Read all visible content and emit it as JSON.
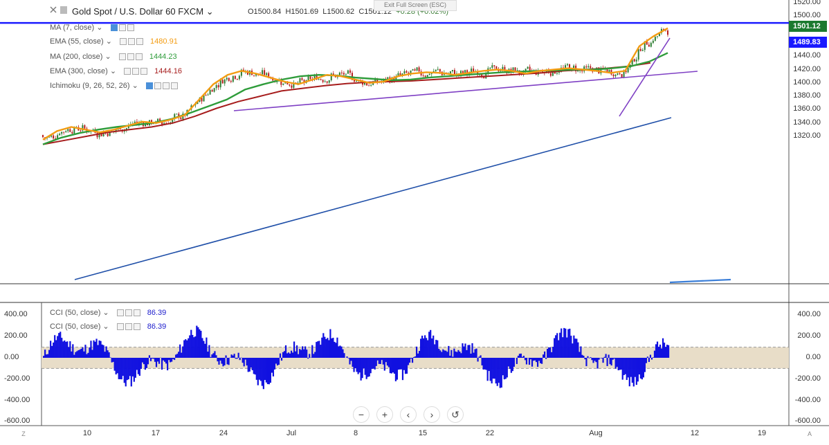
{
  "header": {
    "symbol": "Gold Spot / U.S. Dollar",
    "interval": "60",
    "source": "FXCM",
    "open": "O1500.84",
    "high": "H1501.69",
    "low": "L1500.62",
    "close": "C1501.12",
    "change": "+0.28 (+0.02%)",
    "exit_fullscreen": "Exit Full Screen (ESC)"
  },
  "indicators": [
    {
      "label": "MA (7, close)",
      "value": "",
      "color": "#5b5b5b"
    },
    {
      "label": "EMA (55, close)",
      "value": "1480.91",
      "color": "#f39c12"
    },
    {
      "label": "MA (200, close)",
      "value": "1444.23",
      "color": "#2e9c3a"
    },
    {
      "label": "EMA (300, close)",
      "value": "1444.16",
      "color": "#a61c1c"
    },
    {
      "label": "Ichimoku (9, 26, 52, 26)",
      "value": "",
      "color": "#5b5b5b"
    }
  ],
  "cci_legends": [
    {
      "label": "CCI (50, close)",
      "value": "86.39"
    },
    {
      "label": "CCI (50, close)",
      "value": "86.39"
    }
  ],
  "price_tags": {
    "current": {
      "value": "1501.12",
      "color": "#1b7a2f"
    },
    "line": {
      "value": "1489.83",
      "color": "#1a1aff"
    }
  },
  "nav_buttons": [
    "−",
    "+",
    "‹",
    "›",
    "↺"
  ],
  "corner": {
    "left": "Z",
    "right": "A"
  },
  "chart_data": {
    "type": "candlestick",
    "price_axis": {
      "ticks": [
        "1520.00",
        "1500.00",
        "1480.00",
        "1460.00",
        "1440.00",
        "1420.00",
        "1400.00",
        "1380.00",
        "1360.00",
        "1340.00",
        "1320.00"
      ],
      "range": [
        1308,
        1520
      ]
    },
    "x_axis_labels": [
      "10",
      "17",
      "24",
      "Jul",
      "8",
      "15",
      "22",
      "Aug",
      "12",
      "19"
    ],
    "horizontal_line": 1489.83,
    "ma_series": {
      "ema55": [
        1315,
        1328,
        1334,
        1330,
        1326,
        1330,
        1336,
        1342,
        1340,
        1345,
        1352,
        1375,
        1398,
        1412,
        1418,
        1414,
        1408,
        1402,
        1398,
        1405,
        1412,
        1410,
        1405,
        1400,
        1402,
        1410,
        1414,
        1416,
        1415,
        1412,
        1415,
        1418,
        1420,
        1418,
        1414,
        1418,
        1420,
        1422,
        1420,
        1418,
        1415,
        1418,
        1455,
        1470,
        1482
      ],
      "ma200": [
        1308,
        1318,
        1325,
        1330,
        1334,
        1337,
        1340,
        1346,
        1355,
        1365,
        1375,
        1390,
        1398,
        1405,
        1410,
        1412,
        1411,
        1408,
        1406,
        1404,
        1405,
        1408,
        1410,
        1412,
        1414,
        1416,
        1417,
        1418,
        1419,
        1420,
        1420,
        1422,
        1425,
        1432,
        1445
      ],
      "ema300": [
        1308,
        1314,
        1320,
        1326,
        1330,
        1334,
        1340,
        1350,
        1362,
        1372,
        1380,
        1388,
        1392,
        1396,
        1399,
        1401,
        1402,
        1403,
        1405,
        1407,
        1409,
        1411,
        1413,
        1415,
        1418,
        1420,
        1422,
        1425,
        1430
      ]
    }
  },
  "cci_axis": {
    "ticks": [
      "400.00",
      "200.00",
      "0.00",
      "-200.00",
      "-400.00",
      "-600.00"
    ],
    "band": [
      100,
      -100
    ],
    "range": [
      -610,
      470
    ]
  }
}
